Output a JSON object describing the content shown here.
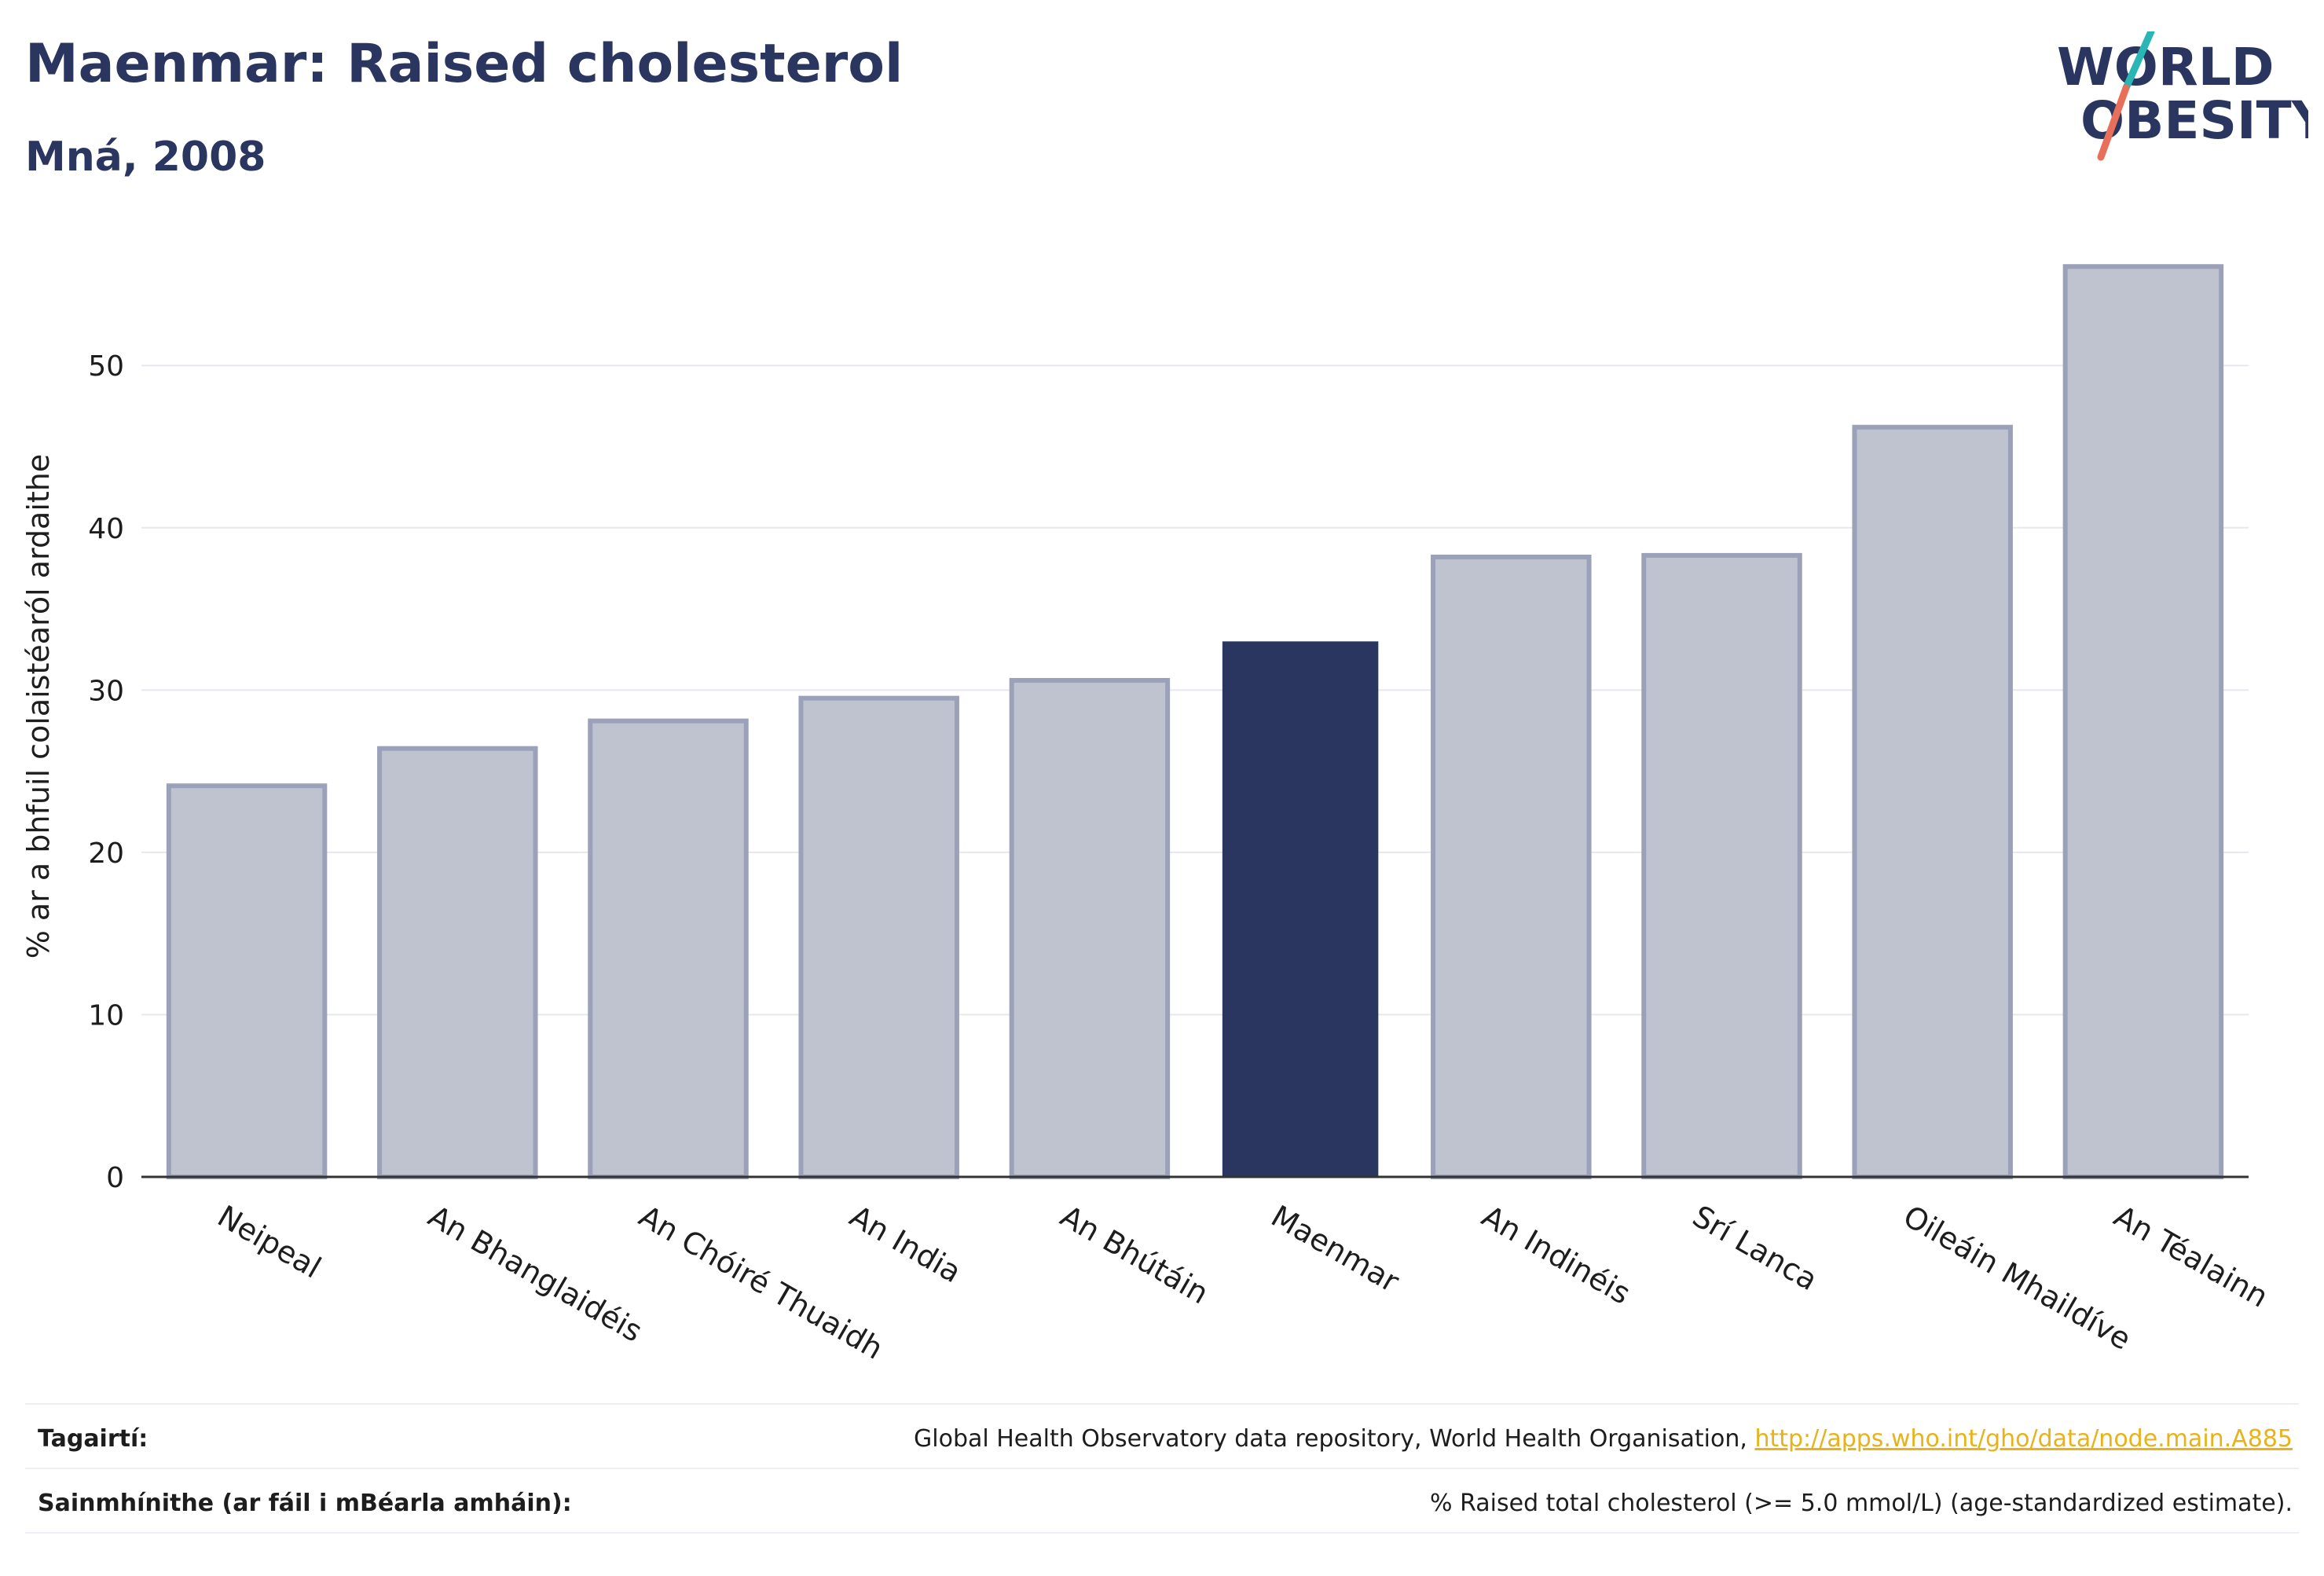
{
  "header": {
    "title": "Maenmar: Raised cholesterol",
    "subtitle": "Mná, 2008"
  },
  "logo": {
    "line1": "WORLD",
    "line2": "OBESITY"
  },
  "colors": {
    "highlight": "#2a3560",
    "bar": "#bfc3d0",
    "bar_outline": "#9ba1b8",
    "accent_teal": "#2bb6b6",
    "accent_coral": "#e8705b",
    "link": "#e8b21a"
  },
  "chart_data": {
    "type": "bar",
    "title": "Maenmar: Raised cholesterol",
    "subtitle": "Mná, 2008",
    "ylabel": "% ar a bhfuil colaistéaról ardaithe",
    "xlabel": "",
    "categories": [
      "Neipeal",
      "An Bhanglaidéis",
      "An Chóiré Thuaidh",
      "An India",
      "An Bhútáin",
      "Maenmar",
      "An Indinéis",
      "Srí Lanca",
      "Oileáin Mhaildíve",
      "An Téalainn"
    ],
    "values": [
      24.1,
      26.4,
      28.1,
      29.5,
      30.6,
      33.0,
      38.2,
      38.3,
      46.2,
      56.1
    ],
    "highlight": "Maenmar",
    "ylim": [
      0,
      58
    ],
    "yticks": [
      0,
      10,
      20,
      30,
      40,
      50
    ],
    "grid": true
  },
  "footer": {
    "references_label": "Tagairtí:",
    "references_text": "Global Health Observatory data repository, World Health Organisation, ",
    "references_link": "http://apps.who.int/gho/data/node.main.A885",
    "definitions_label": "Sainmhínithe (ar fáil i mBéarla amháin):",
    "definitions_text": "% Raised total cholesterol (>= 5.0 mmol/L) (age-standardized estimate)."
  }
}
